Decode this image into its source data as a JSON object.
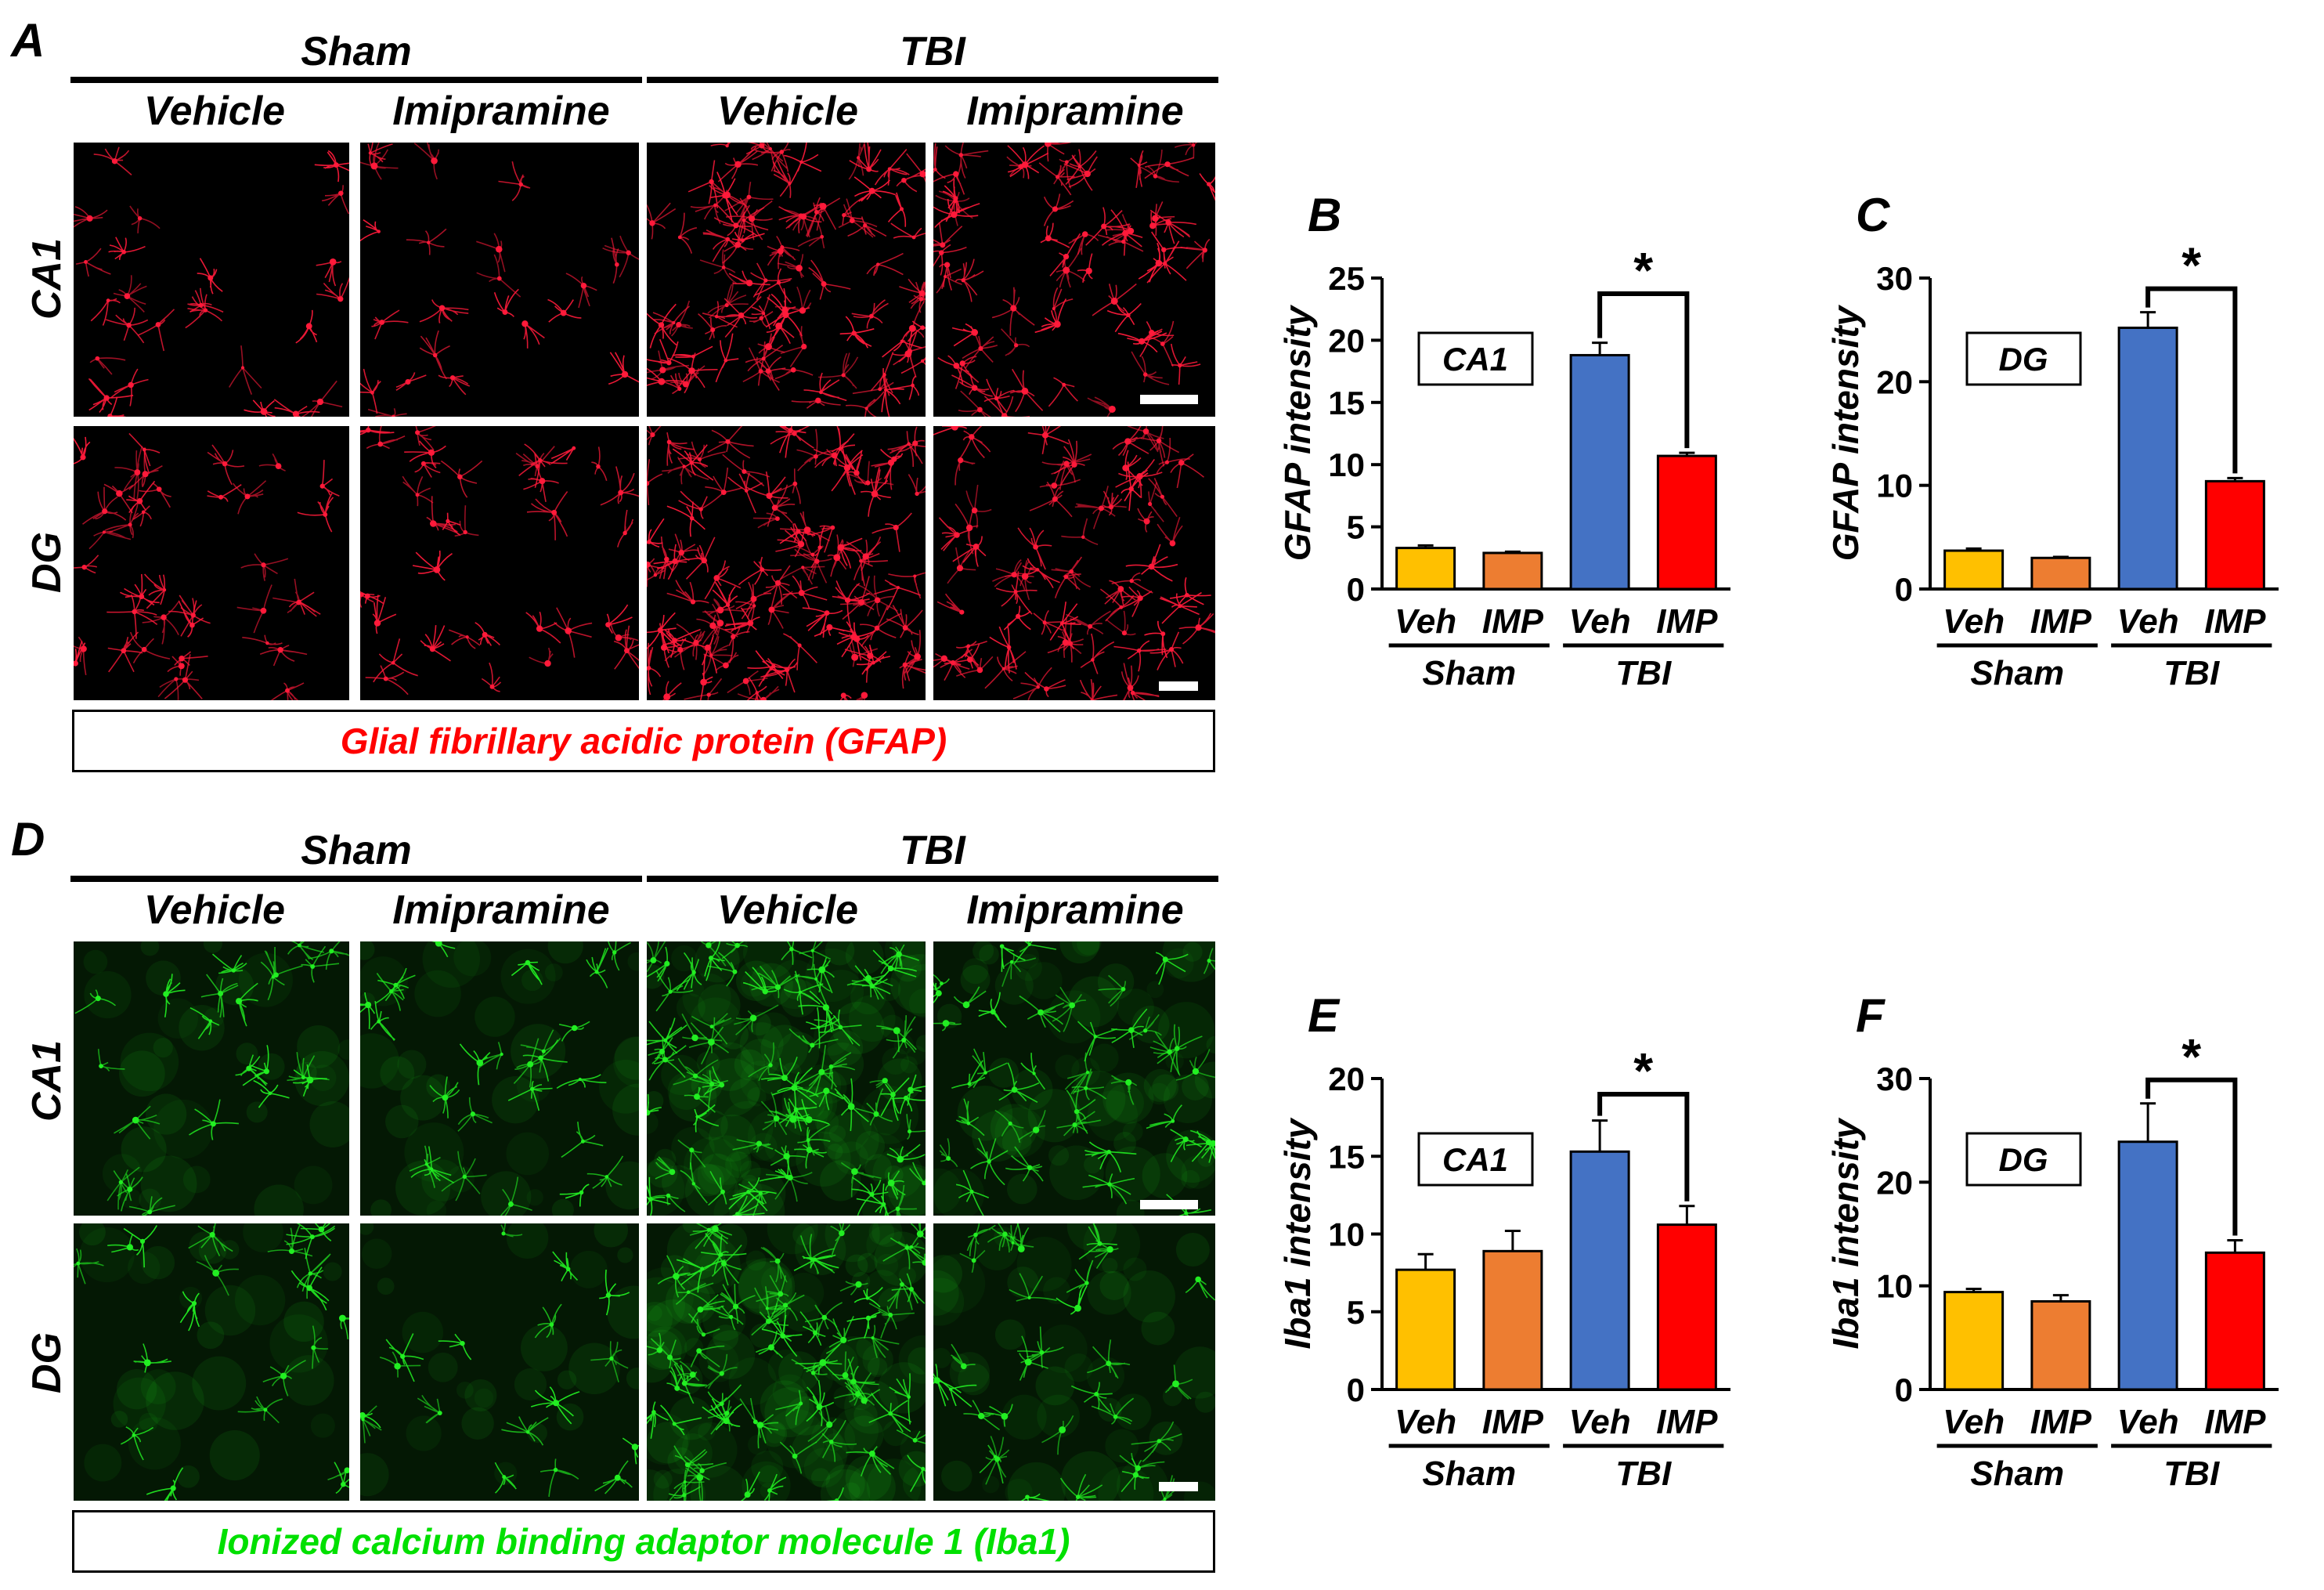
{
  "colors": {
    "sham_vehicle": "#FFC000",
    "sham_imipramine": "#ED7D31",
    "tbi_vehicle": "#4472C4",
    "tbi_imipramine": "#FF0000",
    "gfap_stain": "#ff1a3a",
    "iba1_stain": "#22ee22",
    "gfap_text": "#ff0000",
    "iba1_text": "#00e000"
  },
  "panel_a": {
    "letter": "A",
    "groups": [
      "Sham",
      "TBI"
    ],
    "conditions": [
      "Vehicle",
      "Imipramine",
      "Vehicle",
      "Imipramine"
    ],
    "rows": [
      "CA1",
      "DG"
    ],
    "stain_label": "Glial fibrillary acidic protein (GFAP)"
  },
  "panel_d": {
    "letter": "D",
    "groups": [
      "Sham",
      "TBI"
    ],
    "conditions": [
      "Vehicle",
      "Imipramine",
      "Vehicle",
      "Imipramine"
    ],
    "rows": [
      "CA1",
      "DG"
    ],
    "stain_label": "Ionized calcium binding adaptor molecule 1 (Iba1)"
  },
  "chart_data": [
    {
      "panel": "B",
      "type": "bar",
      "ylabel": "GFAP intensity",
      "region": "CA1",
      "categories": [
        "Veh",
        "IMP",
        "Veh",
        "IMP"
      ],
      "groups": [
        "Sham",
        "TBI"
      ],
      "values": [
        3.3,
        2.9,
        18.8,
        10.7
      ],
      "errors": [
        0.2,
        0.1,
        1.0,
        0.25
      ],
      "ylim": [
        0,
        25
      ],
      "yticks": [
        0,
        5,
        10,
        15,
        20,
        25
      ],
      "significance": "*"
    },
    {
      "panel": "C",
      "type": "bar",
      "ylabel": "GFAP intensity",
      "region": "DG",
      "categories": [
        "Veh",
        "IMP",
        "Veh",
        "IMP"
      ],
      "groups": [
        "Sham",
        "TBI"
      ],
      "values": [
        3.7,
        3.0,
        25.2,
        10.4
      ],
      "errors": [
        0.2,
        0.1,
        1.5,
        0.3
      ],
      "ylim": [
        0,
        30
      ],
      "yticks": [
        0,
        10,
        20,
        30
      ],
      "significance": "*"
    },
    {
      "panel": "E",
      "type": "bar",
      "ylabel": "Iba1 intensity",
      "region": "CA1",
      "categories": [
        "Veh",
        "IMP",
        "Veh",
        "IMP"
      ],
      "groups": [
        "Sham",
        "TBI"
      ],
      "values": [
        7.7,
        8.9,
        15.3,
        10.6
      ],
      "errors": [
        1.0,
        1.3,
        2.0,
        1.2
      ],
      "ylim": [
        0,
        20
      ],
      "yticks": [
        0,
        5,
        10,
        15,
        20
      ],
      "significance": "*"
    },
    {
      "panel": "F",
      "type": "bar",
      "ylabel": "Iba1 intensity",
      "region": "DG",
      "categories": [
        "Veh",
        "IMP",
        "Veh",
        "IMP"
      ],
      "groups": [
        "Sham",
        "TBI"
      ],
      "values": [
        9.4,
        8.5,
        23.9,
        13.2
      ],
      "errors": [
        0.3,
        0.6,
        3.7,
        1.2
      ],
      "ylim": [
        0,
        30
      ],
      "yticks": [
        0,
        10,
        20,
        30
      ],
      "significance": "*"
    }
  ]
}
